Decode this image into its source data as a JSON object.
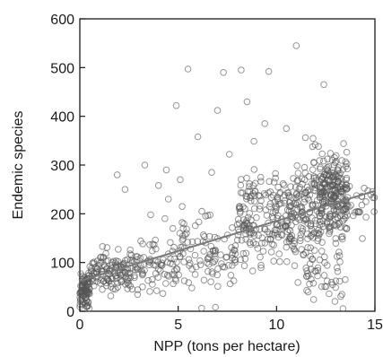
{
  "chart_data": {
    "type": "scatter",
    "title": "",
    "xlabel": "NPP (tons per hectare)",
    "ylabel": "Endemic species",
    "xlim": [
      0,
      15
    ],
    "ylim": [
      0,
      600
    ],
    "x_ticks": [
      0,
      5,
      10,
      15
    ],
    "y_ticks": [
      0,
      100,
      200,
      300,
      400,
      500,
      600
    ],
    "x_tick_labels": [
      "0",
      "5",
      "10",
      "15"
    ],
    "y_tick_labels": [
      "0",
      "100",
      "200",
      "300",
      "400",
      "500",
      "600"
    ],
    "grid": false,
    "legend": "none",
    "marker_color": "#555555",
    "trend_color": "#7a7a7a",
    "trend_line": {
      "x": [
        0,
        15
      ],
      "y": [
        62,
        247
      ]
    },
    "clusters": [
      {
        "x_range": [
          0.0,
          0.5
        ],
        "y_mean": 45,
        "y_sd": 22,
        "count": 90
      },
      {
        "x_range": [
          0.5,
          2.5
        ],
        "y_mean": 80,
        "y_sd": 20,
        "count": 120
      },
      {
        "x_range": [
          2.5,
          5.0
        ],
        "y_mean": 95,
        "y_sd": 25,
        "count": 90
      },
      {
        "x_range": [
          5.0,
          8.0
        ],
        "y_mean": 125,
        "y_sd": 35,
        "count": 100
      },
      {
        "x_range": [
          8.0,
          10.5
        ],
        "y_mean": 185,
        "y_sd": 50,
        "count": 170
      },
      {
        "x_range": [
          10.5,
          12.2
        ],
        "y_mean": 195,
        "y_sd": 60,
        "count": 170
      },
      {
        "x_range": [
          12.2,
          13.6
        ],
        "y_mean": 235,
        "y_sd": 45,
        "count": 230
      },
      {
        "x_range": [
          13.6,
          15.0
        ],
        "y_mean": 220,
        "y_sd": 25,
        "count": 25
      },
      {
        "x_range": [
          11.5,
          13.5
        ],
        "y_mean": 60,
        "y_sd": 30,
        "count": 40
      }
    ],
    "outliers": [
      {
        "x": 11.0,
        "y": 545
      },
      {
        "x": 5.5,
        "y": 497
      },
      {
        "x": 8.2,
        "y": 495
      },
      {
        "x": 9.6,
        "y": 492
      },
      {
        "x": 7.3,
        "y": 490
      },
      {
        "x": 12.4,
        "y": 465
      },
      {
        "x": 4.9,
        "y": 422
      },
      {
        "x": 8.5,
        "y": 430
      },
      {
        "x": 7.0,
        "y": 412
      },
      {
        "x": 9.4,
        "y": 385
      },
      {
        "x": 10.5,
        "y": 375
      },
      {
        "x": 6.0,
        "y": 358
      },
      {
        "x": 3.3,
        "y": 300
      },
      {
        "x": 4.4,
        "y": 290
      },
      {
        "x": 1.9,
        "y": 280
      },
      {
        "x": 6.7,
        "y": 285
      },
      {
        "x": 5.1,
        "y": 270
      },
      {
        "x": 4.0,
        "y": 258
      },
      {
        "x": 2.3,
        "y": 250
      },
      {
        "x": 5.2,
        "y": 215
      },
      {
        "x": 3.6,
        "y": 198
      },
      {
        "x": 6.2,
        "y": 205
      },
      {
        "x": 4.5,
        "y": 230
      },
      {
        "x": 7.6,
        "y": 322
      }
    ]
  }
}
